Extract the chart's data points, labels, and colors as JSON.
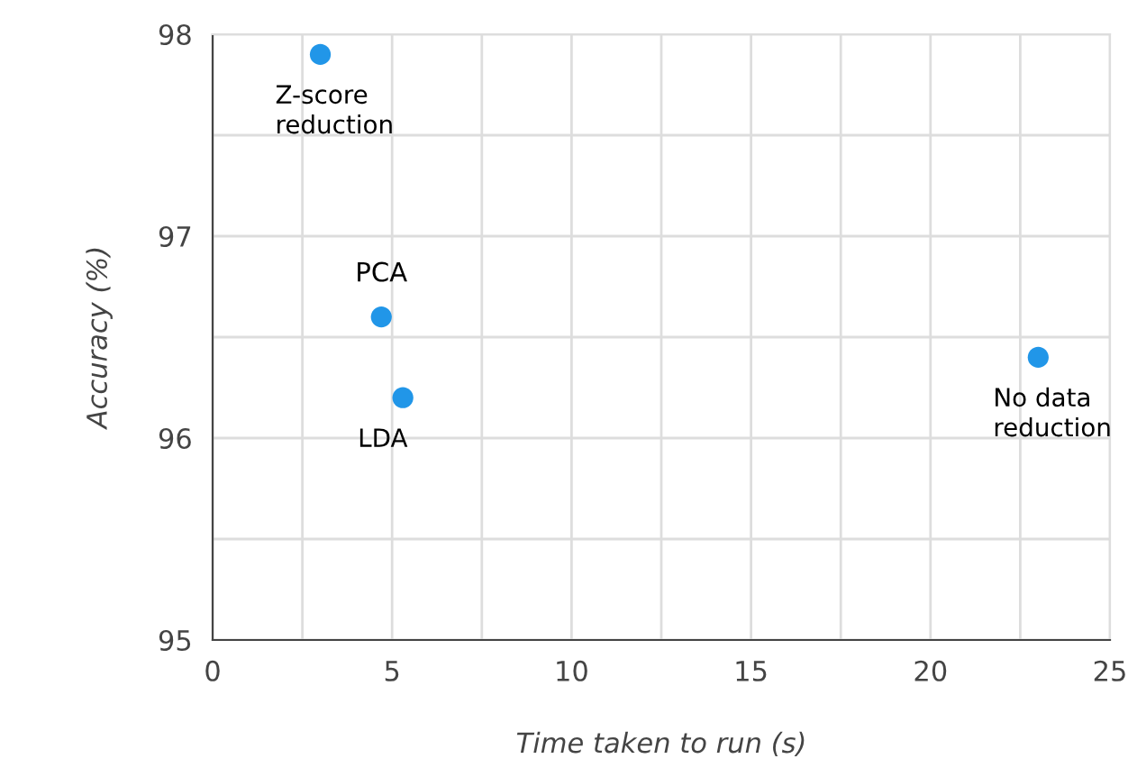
{
  "chart_data": {
    "type": "scatter",
    "xlabel": "Time taken to run (s)",
    "ylabel": "Accuracy (%)",
    "x": [
      3.0,
      4.7,
      5.3,
      23.0
    ],
    "series": [
      {
        "color": "#2196e8",
        "values": [
          97.9,
          96.6,
          96.2,
          96.4
        ]
      }
    ],
    "xlim": [
      0,
      25
    ],
    "ylim": [
      95,
      98
    ],
    "xticks": [
      0,
      {
        "value": 2.5,
        "label": null
      },
      5,
      {
        "value": 7.5,
        "label": null
      },
      10,
      {
        "value": 12.5,
        "label": null
      },
      15,
      {
        "value": 17.5,
        "label": null
      },
      20,
      {
        "value": 22.5,
        "label": null
      },
      25
    ],
    "yticks": [
      95,
      {
        "value": 95.5,
        "label": null
      },
      96,
      {
        "value": 96.5,
        "label": null
      },
      97,
      {
        "value": 97.5,
        "label": null
      },
      98
    ],
    "grid": true,
    "marker": "circle",
    "annotations": [
      {
        "text": "Z-score\nreduction",
        "x": 3.0,
        "y": 97.9
      },
      {
        "text": "PCA",
        "x": 4.7,
        "y": 96.6
      },
      {
        "text": "LDA",
        "x": 5.3,
        "y": 96.2
      },
      {
        "text": "No data\nreduction",
        "x": 23.0,
        "y": 96.4
      }
    ]
  }
}
